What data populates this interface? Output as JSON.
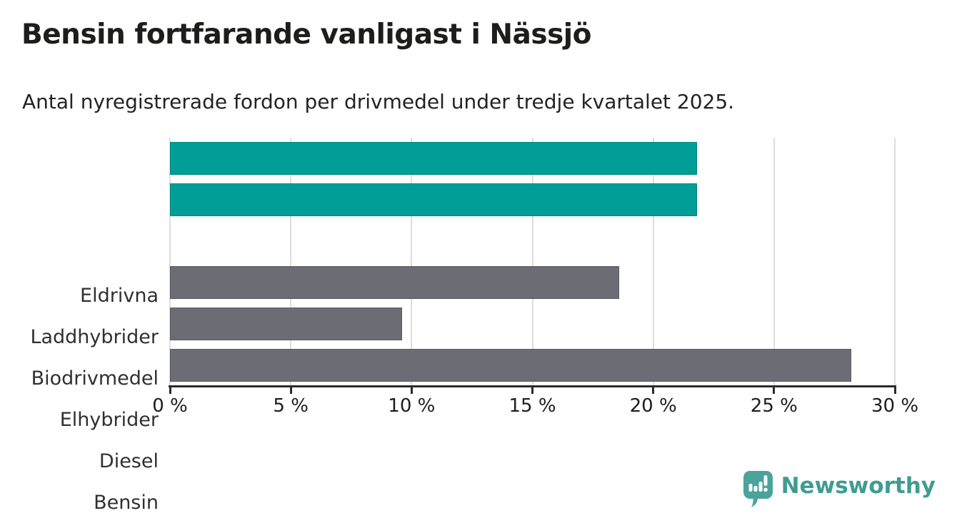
{
  "title": "Bensin fortfarande vanligast i Nässjö",
  "subtitle": "Antal nyregistrerade fordon per drivmedel under tredje kvartalet 2025.",
  "chart_data": {
    "type": "bar",
    "orientation": "horizontal",
    "title": "Bensin fortfarande vanligast i Nässjö",
    "subtitle": "Antal nyregistrerade fordon per drivmedel under tredje kvartalet 2025.",
    "categories": [
      "Eldrivna",
      "Laddhybrider",
      "Biodrivmedel",
      "Elhybrider",
      "Diesel",
      "Bensin"
    ],
    "values": [
      21.8,
      21.8,
      0,
      18.6,
      9.6,
      28.2
    ],
    "unit": "%",
    "xlim": [
      0,
      30
    ],
    "x_tick_values": [
      0,
      5,
      10,
      15,
      20,
      25,
      30
    ],
    "x_tick_labels": [
      "0 %",
      "5 %",
      "10 %",
      "15 %",
      "20 %",
      "25 %",
      "30 %"
    ],
    "grid": true,
    "legend": false,
    "bar_colors": [
      "#009e96",
      "#009e96",
      "#6c6c74",
      "#6c6c74",
      "#6c6c74",
      "#6c6c74"
    ],
    "accent_color": "#009e96",
    "base_color": "#6c6c74",
    "gridline_color": "#dedede",
    "axis_color": "#2b2b2b"
  },
  "branding": {
    "logo_text": "Newsworthy",
    "logo_text_color": "#3f9c93",
    "logo_mark_color": "#4ba39b"
  }
}
